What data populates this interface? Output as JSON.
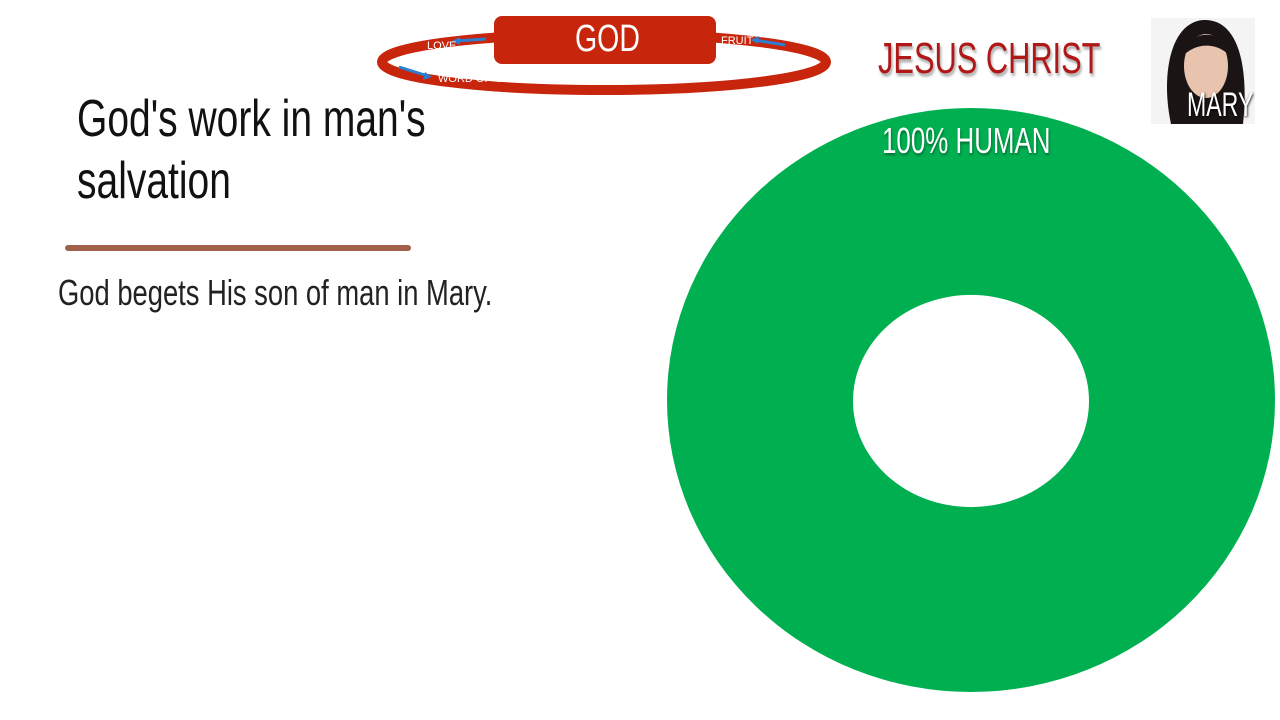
{
  "diagram": {
    "god": "GOD",
    "love": "LOVE",
    "fruit": "FRUIT",
    "word": "WORD OF GOD"
  },
  "slide": {
    "title": "God's work in man's salvation",
    "body": "God begets His son of man in Mary."
  },
  "jesus_label": "JESUS CHRIST",
  "mary_label": "MARY",
  "donut": {
    "label": "100% HUMAN",
    "percent": 100,
    "color": "#00b050"
  },
  "colors": {
    "accent_red": "#c8260c",
    "title_red": "#b01818",
    "rule": "#a0604a"
  }
}
